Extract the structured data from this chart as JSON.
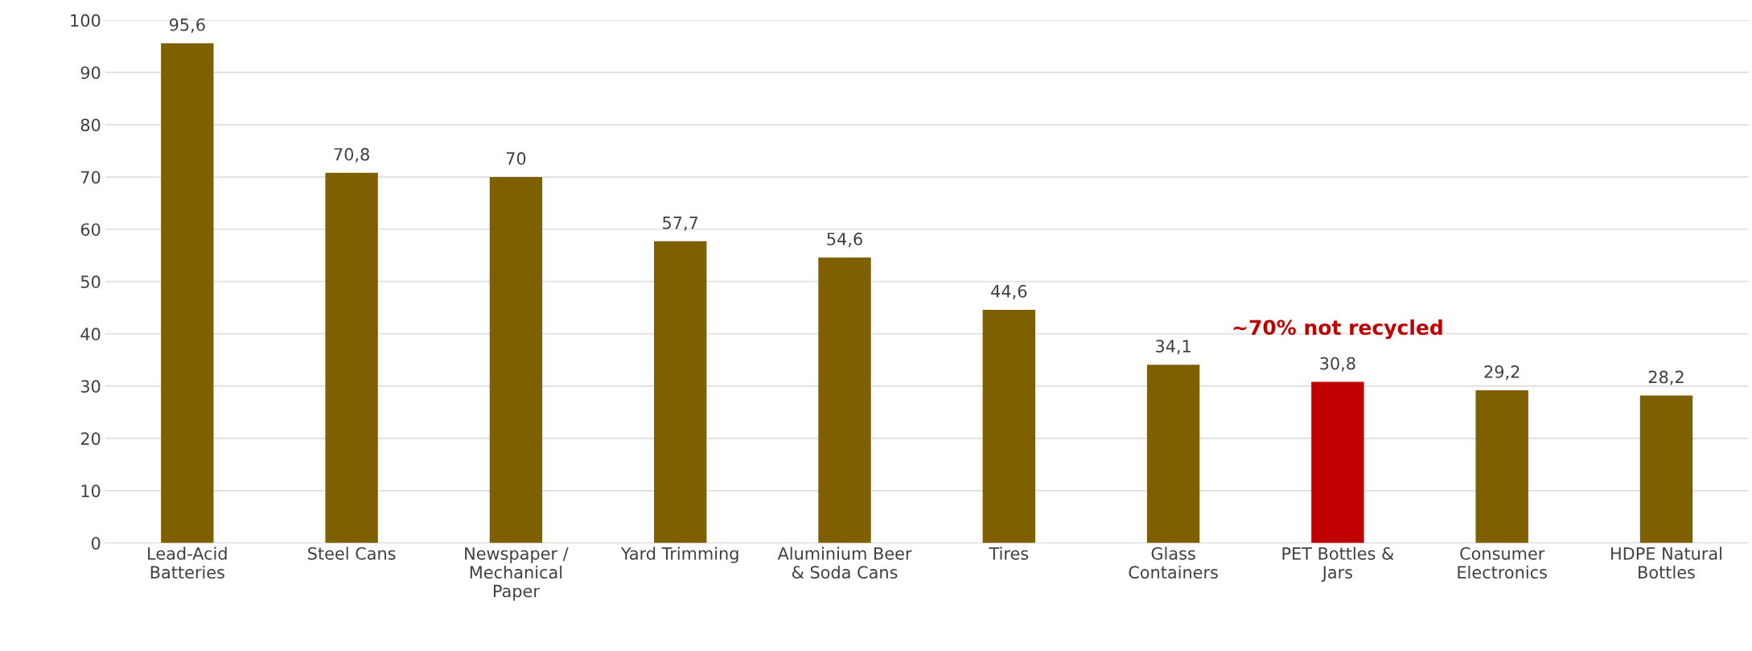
{
  "chart_data": {
    "type": "bar",
    "categories": [
      "Lead-Acid Batteries",
      "Steel Cans",
      "Newspaper / Mechanical Paper",
      "Yard Trimming",
      "Aluminium Beer & Soda Cans",
      "Tires",
      "Glass Containers",
      "PET Bottles & Jars",
      "Consumer Electronics",
      "HDPE Natural Bottles"
    ],
    "values": [
      95.6,
      70.8,
      70,
      57.7,
      54.6,
      44.6,
      34.1,
      30.8,
      29.2,
      28.2
    ],
    "colors": [
      "#7f6000",
      "#7f6000",
      "#7f6000",
      "#7f6000",
      "#7f6000",
      "#7f6000",
      "#7f6000",
      "#c00000",
      "#7f6000",
      "#7f6000"
    ],
    "value_labels": [
      "95,6",
      "70,8",
      "70",
      "57,7",
      "54,6",
      "44,6",
      "34,1",
      "30,8",
      "29,2",
      "28,2"
    ],
    "ylim": [
      0,
      100
    ],
    "yticks": [
      0,
      10,
      20,
      30,
      40,
      50,
      60,
      70,
      80,
      90,
      100
    ],
    "grid": "y",
    "annotations": [
      "~70% not recycled"
    ]
  }
}
